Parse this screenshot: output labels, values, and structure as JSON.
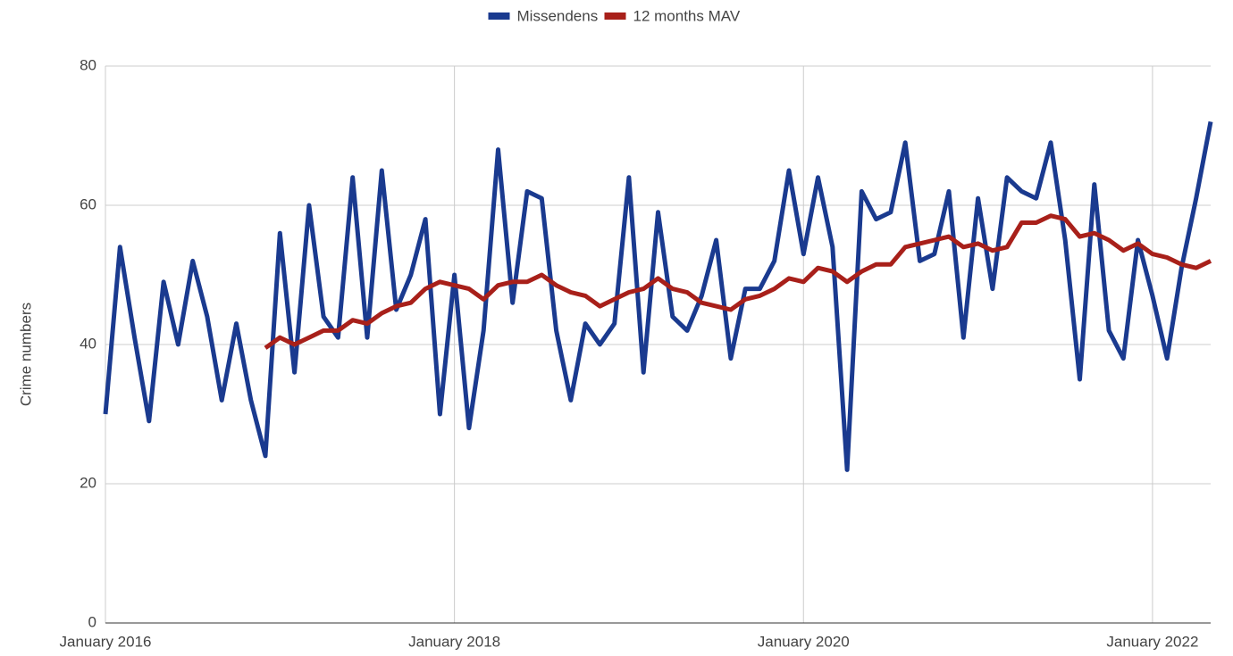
{
  "chart_data": {
    "type": "line",
    "x": [
      "2016-01",
      "2016-02",
      "2016-03",
      "2016-04",
      "2016-05",
      "2016-06",
      "2016-07",
      "2016-08",
      "2016-09",
      "2016-10",
      "2016-11",
      "2016-12",
      "2017-01",
      "2017-02",
      "2017-03",
      "2017-04",
      "2017-05",
      "2017-06",
      "2017-07",
      "2017-08",
      "2017-09",
      "2017-10",
      "2017-11",
      "2017-12",
      "2018-01",
      "2018-02",
      "2018-03",
      "2018-04",
      "2018-05",
      "2018-06",
      "2018-07",
      "2018-08",
      "2018-09",
      "2018-10",
      "2018-11",
      "2018-12",
      "2019-01",
      "2019-02",
      "2019-03",
      "2019-04",
      "2019-05",
      "2019-06",
      "2019-07",
      "2019-08",
      "2019-09",
      "2019-10",
      "2019-11",
      "2019-12",
      "2020-01",
      "2020-02",
      "2020-03",
      "2020-04",
      "2020-05",
      "2020-06",
      "2020-07",
      "2020-08",
      "2020-09",
      "2020-10",
      "2020-11",
      "2020-12",
      "2021-01",
      "2021-02",
      "2021-03",
      "2021-04",
      "2021-05",
      "2021-06",
      "2021-07",
      "2021-08",
      "2021-09",
      "2021-10",
      "2021-11",
      "2021-12",
      "2022-01",
      "2022-02",
      "2022-03",
      "2022-04",
      "2022-05"
    ],
    "series": [
      {
        "name": "Missendens",
        "color": "#1a3a8f",
        "values": [
          30,
          54,
          41,
          29,
          49,
          40,
          52,
          44,
          32,
          43,
          32,
          24,
          56,
          36,
          60,
          44,
          41,
          64,
          41,
          65,
          45,
          50,
          58,
          30,
          50,
          28,
          42,
          68,
          46,
          62,
          61,
          42,
          32,
          43,
          40,
          43,
          64,
          36,
          59,
          44,
          42,
          47,
          55,
          38,
          48,
          48,
          52,
          65,
          53,
          64,
          54,
          22,
          62,
          58,
          59,
          69,
          52,
          53,
          62,
          41,
          61,
          48,
          64,
          62,
          61,
          69,
          55,
          35,
          63,
          42,
          38,
          55,
          47,
          38,
          51,
          61,
          72
        ]
      },
      {
        "name": "12 months MAV",
        "color": "#a8201a",
        "values": [
          null,
          null,
          null,
          null,
          null,
          null,
          null,
          null,
          null,
          null,
          null,
          39.5,
          41,
          40,
          41,
          42,
          42,
          43.5,
          43,
          44.5,
          45.5,
          46,
          48,
          49,
          48.5,
          48,
          46.5,
          48.5,
          49,
          49,
          50,
          48.5,
          47.5,
          47,
          45.5,
          46.5,
          47.5,
          48,
          49.5,
          48,
          47.5,
          46,
          45.5,
          45,
          46.5,
          47,
          48,
          49.5,
          49,
          51,
          50.5,
          49,
          50.5,
          51.5,
          51.5,
          54,
          54.5,
          55,
          55.5,
          54,
          54.5,
          53.5,
          54,
          57.5,
          57.5,
          58.5,
          58,
          55.5,
          56,
          55,
          53.5,
          54.5,
          53,
          52.5,
          51.5,
          51,
          52
        ]
      }
    ],
    "y_label": "Crime numbers",
    "ylim": [
      0,
      80
    ],
    "yticks": [
      0,
      20,
      40,
      60,
      80
    ],
    "xticks": [
      {
        "value": "2016-01",
        "label": "January 2016"
      },
      {
        "value": "2018-01",
        "label": "January 2018"
      },
      {
        "value": "2020-01",
        "label": "January 2020"
      },
      {
        "value": "2022-01",
        "label": "January 2022"
      }
    ],
    "grid": true,
    "legend": "top"
  }
}
